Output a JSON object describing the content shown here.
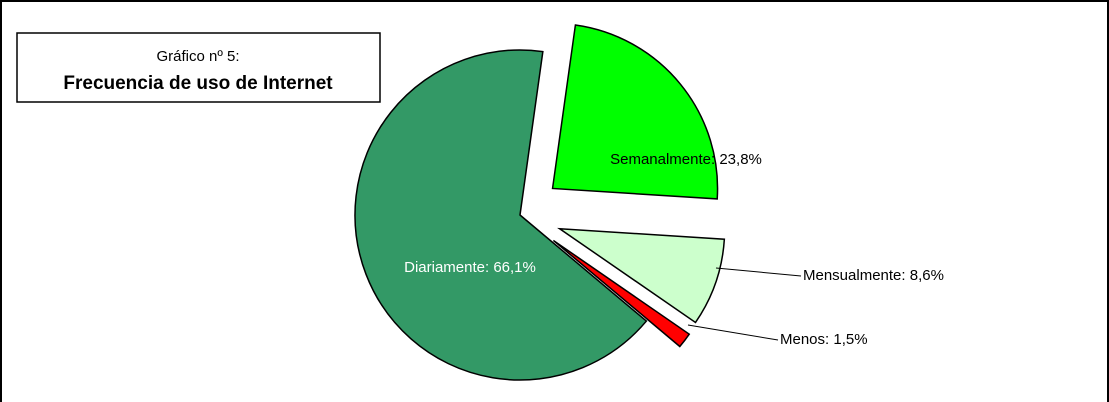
{
  "chart_data": {
    "type": "pie",
    "subtitle": "Gráfico nº 5:",
    "title": "Frecuencia de uso de Internet",
    "values": [
      66.1,
      23.8,
      8.6,
      1.5
    ],
    "value_labels": [
      "Diariamente: 66,1%",
      "Semanalmente: 23,8%",
      "Mensualmente: 8,6%",
      "Menos: 1,5%"
    ],
    "colors": [
      "#339966",
      "#00ff00",
      "#ccffcc",
      "#ff0000"
    ]
  }
}
